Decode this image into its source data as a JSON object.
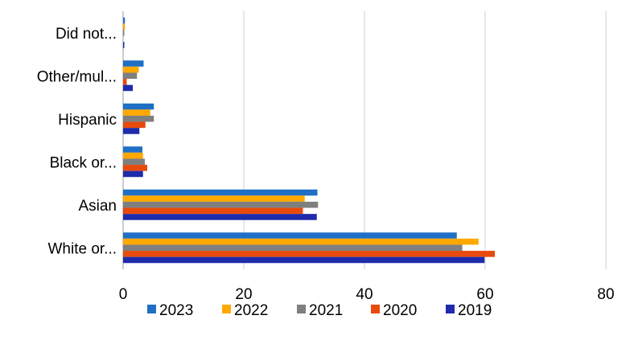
{
  "chart_data": {
    "type": "bar",
    "orientation": "horizontal",
    "categories": [
      "White or...",
      "Asian",
      "Black or...",
      "Hispanic",
      "Other/mul...",
      "Did not..."
    ],
    "series": [
      {
        "name": "2023",
        "color": "#1F6FC5",
        "values": [
          55.3,
          32.2,
          3.2,
          5.1,
          3.4,
          0.3
        ]
      },
      {
        "name": "2022",
        "color": "#FFA800",
        "values": [
          58.9,
          30.1,
          3.3,
          4.5,
          2.6,
          0.3
        ]
      },
      {
        "name": "2021",
        "color": "#7F7F7F",
        "values": [
          56.2,
          32.3,
          3.6,
          5.1,
          2.3,
          0.1
        ]
      },
      {
        "name": "2020",
        "color": "#E84A0C",
        "values": [
          61.6,
          29.8,
          4.0,
          3.7,
          0.6,
          0.0
        ]
      },
      {
        "name": "2019",
        "color": "#1F2BAA",
        "values": [
          59.9,
          32.1,
          3.3,
          2.7,
          1.6,
          0.2
        ]
      }
    ],
    "xlim": [
      0,
      80
    ],
    "xticks": [
      0,
      20,
      40,
      60,
      80
    ],
    "grid": "vertical",
    "legend": "bottom"
  }
}
